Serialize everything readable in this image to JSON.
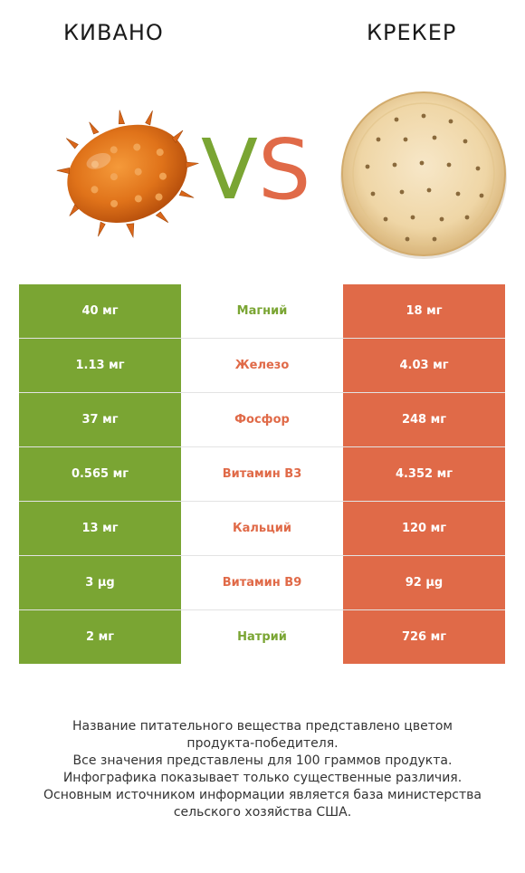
{
  "header": {
    "left_title": "КИВАНО",
    "right_title": "КРЕКЕР",
    "vs_v": "V",
    "vs_s": "S"
  },
  "colors": {
    "winner_left": "#7aa533",
    "winner_right": "#e06a48"
  },
  "rows": [
    {
      "left": "40 мг",
      "nutrient": "Магний",
      "right": "18 мг",
      "winner": "left"
    },
    {
      "left": "1.13 мг",
      "nutrient": "Железо",
      "right": "4.03 мг",
      "winner": "right"
    },
    {
      "left": "37 мг",
      "nutrient": "Фосфор",
      "right": "248 мг",
      "winner": "right"
    },
    {
      "left": "0.565 мг",
      "nutrient": "Витамин B3",
      "right": "4.352 мг",
      "winner": "right"
    },
    {
      "left": "13 мг",
      "nutrient": "Кальций",
      "right": "120 мг",
      "winner": "right"
    },
    {
      "left": "3 µg",
      "nutrient": "Витамин B9",
      "right": "92 µg",
      "winner": "right"
    },
    {
      "left": "2 мг",
      "nutrient": "Натрий",
      "right": "726 мг",
      "winner": "left"
    }
  ],
  "notes": [
    "Название питательного вещества представлено цветом",
    "продукта-победителя.",
    "Все значения представлены для 100 граммов продукта.",
    "Инфографика показывает только существенные различия.",
    "Основным источником информации является база министерства",
    "сельского хозяйства США."
  ]
}
